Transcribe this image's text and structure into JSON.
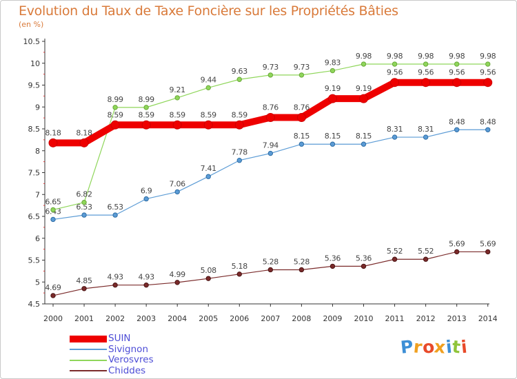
{
  "title": "Evolution du Taux de Taxe Foncière sur les Propriétés Bâties",
  "subtitle": "(en %)",
  "chart_data": {
    "type": "line",
    "title": "Evolution du Taux de Taxe Foncière sur les Propriétés Bâties",
    "ylabel": "(en %)",
    "xlabel": "",
    "x": [
      "2000",
      "2001",
      "2002",
      "2003",
      "2004",
      "2005",
      "2006",
      "2007",
      "2008",
      "2009",
      "2010",
      "2011",
      "2012",
      "2013",
      "2014"
    ],
    "ylim": [
      4.5,
      10.5
    ],
    "yticks": [
      "4.5",
      "5",
      "5.5",
      "6",
      "6.5",
      "7",
      "7.5",
      "8",
      "8.5",
      "9",
      "9.5",
      "10",
      "10.5"
    ],
    "grid": false,
    "legend_position": "bottom-left",
    "series": [
      {
        "name": "SUIN",
        "color": "#ee0000",
        "values": [
          8.18,
          8.18,
          8.59,
          8.59,
          8.59,
          8.59,
          8.59,
          8.76,
          8.76,
          9.19,
          9.19,
          9.56,
          9.56,
          9.56,
          9.56
        ],
        "labels": [
          "8.18",
          "8.18",
          "8.59",
          "8.59",
          "8.59",
          "8.59",
          "8.59",
          "8.76",
          "8.76",
          "9.19",
          "9.19",
          "9.56",
          "9.56",
          "9.56",
          "9.56"
        ]
      },
      {
        "name": "Sivignon",
        "color": "#5b9bd5",
        "values": [
          6.43,
          6.53,
          6.53,
          6.9,
          7.06,
          7.41,
          7.78,
          7.94,
          8.15,
          8.15,
          8.15,
          8.31,
          8.31,
          8.48,
          8.48
        ],
        "labels": [
          "6.43",
          "6.53",
          "6.53",
          "6.9",
          "7.06",
          "7.41",
          "7.78",
          "7.94",
          "8.15",
          "8.15",
          "8.15",
          "8.31",
          "8.31",
          "8.48",
          "8.48"
        ]
      },
      {
        "name": "Verosvres",
        "color": "#8fd65a",
        "values": [
          6.65,
          6.82,
          8.99,
          8.99,
          9.21,
          9.44,
          9.63,
          9.73,
          9.73,
          9.83,
          9.98,
          9.98,
          9.98,
          9.98,
          9.98
        ],
        "labels": [
          "6.65",
          "6.82",
          "8.99",
          "8.99",
          "9.21",
          "9.44",
          "9.63",
          "9.73",
          "9.73",
          "9.83",
          "9.98",
          "9.98",
          "9.98",
          "9.98",
          "9.98"
        ]
      },
      {
        "name": "Chiddes",
        "color": "#7a2a2a",
        "values": [
          4.69,
          4.85,
          4.93,
          4.93,
          4.99,
          5.08,
          5.18,
          5.28,
          5.28,
          5.36,
          5.36,
          5.52,
          5.52,
          5.69,
          5.69
        ],
        "labels": [
          "4.69",
          "4.85",
          "4.93",
          "4.93",
          "4.99",
          "5.08",
          "5.18",
          "5.28",
          "5.28",
          "5.36",
          "5.36",
          "5.52",
          "5.52",
          "5.69",
          "5.69"
        ]
      }
    ]
  },
  "legend": [
    {
      "name": "SUIN",
      "color": "#ee0000"
    },
    {
      "name": "Sivignon",
      "color": "#5b9bd5"
    },
    {
      "name": "Verosvres",
      "color": "#8fd65a"
    },
    {
      "name": "Chiddes",
      "color": "#7a2a2a"
    }
  ],
  "logo": {
    "text": "Proxiti",
    "letters": [
      "P",
      "r",
      "o",
      "x",
      "i",
      "t",
      "i"
    ],
    "colors": [
      "#3d8fd6",
      "#f0a020",
      "#e84a2a",
      "#f0a020",
      "#3d8fd6",
      "#8fc43a",
      "#e84a2a"
    ]
  }
}
